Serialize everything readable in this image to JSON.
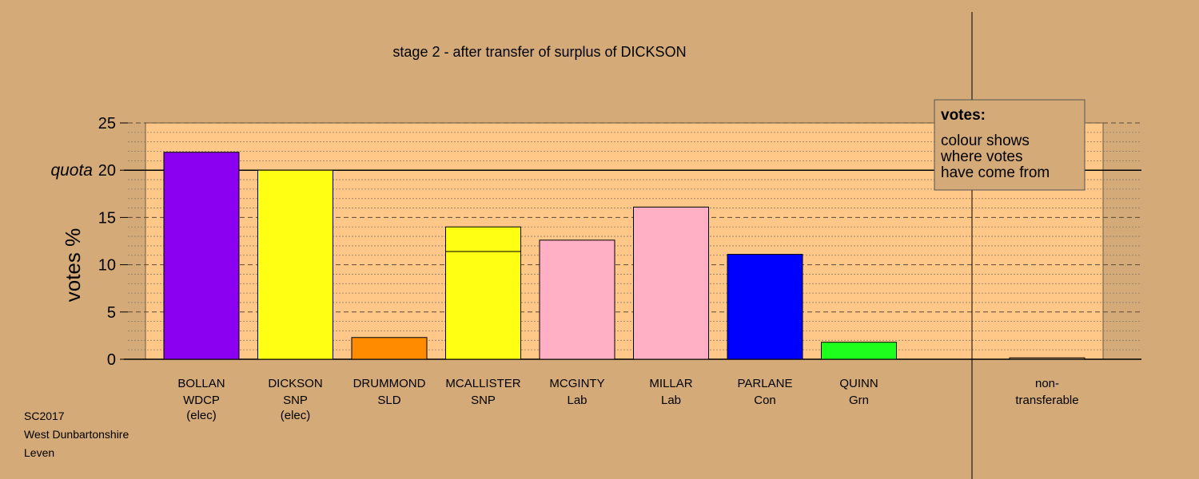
{
  "chart_data": {
    "type": "bar",
    "title": "stage 2 - after transfer of surplus of DICKSON",
    "ylabel": "votes %",
    "ylim": [
      0,
      25
    ],
    "yticks": [
      0,
      5,
      10,
      15,
      20,
      25
    ],
    "quota": {
      "label": "quota",
      "value": 20
    },
    "candidates": [
      {
        "name": "BOLLAN",
        "party": "WDCP",
        "status": "(elec)",
        "segments": [
          {
            "value": 21.9,
            "color": "#8b00f0"
          }
        ]
      },
      {
        "name": "DICKSON",
        "party": "SNP",
        "status": "(elec)",
        "segments": [
          {
            "value": 20.0,
            "color": "#ffff14"
          }
        ]
      },
      {
        "name": "DRUMMOND",
        "party": "SLD",
        "status": "",
        "segments": [
          {
            "value": 2.3,
            "color": "#ff8c00"
          }
        ]
      },
      {
        "name": "MCALLISTER",
        "party": "SNP",
        "status": "",
        "segments": [
          {
            "value": 11.4,
            "color": "#ffff14"
          },
          {
            "value": 2.6,
            "color": "#ffff14"
          }
        ]
      },
      {
        "name": "MCGINTY",
        "party": "Lab",
        "status": "",
        "segments": [
          {
            "value": 12.6,
            "color": "#ffb0c4"
          }
        ]
      },
      {
        "name": "MILLAR",
        "party": "Lab",
        "status": "",
        "segments": [
          {
            "value": 16.1,
            "color": "#ffb0c4"
          }
        ]
      },
      {
        "name": "PARLANE",
        "party": "Con",
        "status": "",
        "segments": [
          {
            "value": 11.1,
            "color": "#0000ff"
          }
        ]
      },
      {
        "name": "QUINN",
        "party": "Grn",
        "status": "",
        "segments": [
          {
            "value": 1.8,
            "color": "#1eff1e"
          }
        ]
      }
    ],
    "nontransferable": {
      "label_line1": "non-",
      "label_line2": "transferable",
      "value": 0.15,
      "color": "#d4aa78"
    },
    "legend": {
      "title": "votes:",
      "lines": [
        "colour shows",
        "where votes",
        "have come from"
      ],
      "placement": "top-right"
    },
    "grid": true
  },
  "caption": {
    "line1": "SC2017",
    "line2": "West Dunbartonshire",
    "line3": "Leven"
  },
  "colors": {
    "background": "#d4aa78",
    "plot_area": "#ffc888"
  }
}
